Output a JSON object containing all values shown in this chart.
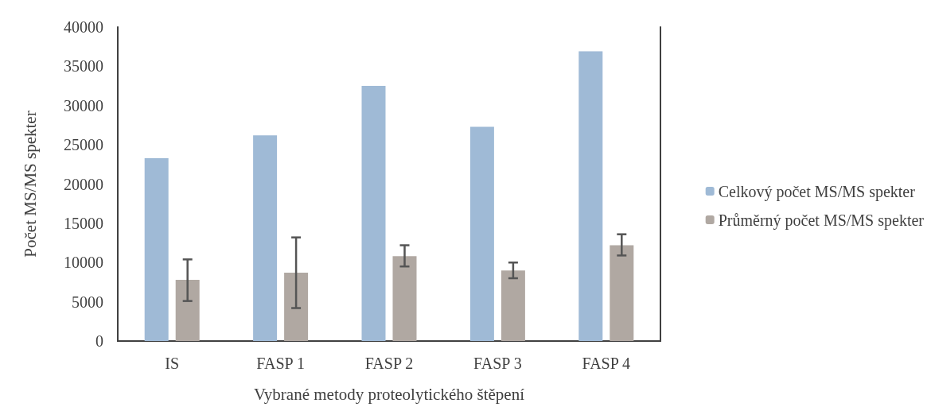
{
  "chart_data": {
    "type": "bar",
    "xlabel": "Vybrané metody proteolytického štěpení",
    "ylabel": "Počet MS/MS spekter",
    "categories": [
      "IS",
      "FASP 1",
      "FASP 2",
      "FASP 3",
      "FASP 4"
    ],
    "series": [
      {
        "name": "Celkový počet MS/MS spekter",
        "color": "#9fbad6",
        "values": [
          23300,
          26200,
          32500,
          27300,
          36900
        ]
      },
      {
        "name": "Průměrný počet MS/MS spekter",
        "color": "#b0a8a2",
        "values": [
          7800,
          8700,
          10800,
          9000,
          12200
        ],
        "errors": [
          [
            5100,
            10400
          ],
          [
            4200,
            13200
          ],
          [
            9500,
            12200
          ],
          [
            8000,
            10000
          ],
          [
            10900,
            13600
          ]
        ]
      }
    ],
    "ylim": [
      0,
      40000
    ],
    "yticks": [
      0,
      5000,
      10000,
      15000,
      20000,
      25000,
      30000,
      35000,
      40000
    ],
    "grid": false,
    "legend": "right"
  }
}
